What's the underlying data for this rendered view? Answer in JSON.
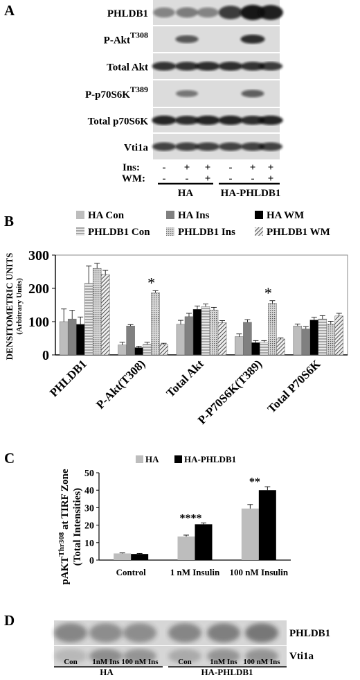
{
  "panels": {
    "a": "A",
    "b": "B",
    "c": "C",
    "d": "D"
  },
  "panelA": {
    "blots": [
      {
        "name": "PHLDB1"
      },
      {
        "name": "P-Akt",
        "sup": "T308"
      },
      {
        "name": "Total Akt"
      },
      {
        "name": "P-p70S6K",
        "sup": "T389"
      },
      {
        "name": "Total p70S6K"
      },
      {
        "name": "Vti1a"
      }
    ],
    "ins_label": "Ins:",
    "wm_label": "WM:",
    "ins_signs": [
      "-",
      "+",
      "+",
      "-",
      "+",
      "+"
    ],
    "wm_signs": [
      "-",
      "-",
      "+",
      "-",
      "-",
      "+"
    ],
    "group_ha": "HA",
    "group_phldb1": "HA-PHLDB1"
  },
  "panelB": {
    "legend": [
      "HA Con",
      "HA Ins",
      "HA WM",
      "PHLDB1 Con",
      "PHLDB1 Ins",
      "PHLDB1 WM"
    ],
    "ylabel": "DENSITOMETRIC UNITS",
    "ylabel2": "(Arbitrary Units)",
    "significance": [
      "*",
      "*"
    ]
  },
  "panelC": {
    "legend": [
      "HA",
      "HA-PHLDB1"
    ],
    "ylabel_pre": "pAKT",
    "ylabel_sub": "Thr308",
    "ylabel_post": " at TIRF Zone",
    "ylabel2": "(Total Intensities)",
    "annotations": [
      "****",
      "**"
    ]
  },
  "panelD": {
    "blots": [
      "PHLDB1",
      "Vti1a"
    ],
    "lanes": [
      "Con",
      "1nM Ins",
      "100 nM Ins",
      "Con",
      "1nM Ins",
      "100 nM Ins"
    ],
    "group_ha": "HA",
    "group_phldb1": "HA-PHLDB1"
  },
  "colors": {
    "ha_con": "#bdbdbd",
    "ha_ins": "#808080",
    "ha_wm": "#000000",
    "blot_bg": "#d6d6d6",
    "band": "#1a1a1a"
  },
  "chart_data": [
    {
      "type": "bar",
      "categories": [
        "PHLDB1",
        "P-Akt(T308)",
        "Total Akt",
        "P-P70S6K(T389)",
        "Total P70S6K"
      ],
      "series": [
        {
          "name": "HA Con",
          "values": [
            100,
            30,
            92,
            55,
            87
          ],
          "errors": [
            38,
            8,
            12,
            8,
            6
          ]
        },
        {
          "name": "HA Ins",
          "values": [
            108,
            87,
            115,
            98,
            78
          ],
          "errors": [
            26,
            4,
            10,
            8,
            7
          ]
        },
        {
          "name": "HA WM",
          "values": [
            92,
            22,
            137,
            37,
            105
          ],
          "errors": [
            22,
            4,
            10,
            6,
            8
          ]
        },
        {
          "name": "PHLDB1 Con",
          "values": [
            215,
            32,
            145,
            38,
            108
          ],
          "errors": [
            52,
            6,
            8,
            5,
            10
          ]
        },
        {
          "name": "PHLDB1 Ins",
          "values": [
            260,
            187,
            135,
            155,
            93
          ],
          "errors": [
            15,
            6,
            8,
            8,
            8
          ]
        },
        {
          "name": "PHLDB1 WM",
          "values": [
            242,
            32,
            97,
            48,
            117
          ],
          "errors": [
            12,
            3,
            6,
            3,
            8
          ]
        }
      ],
      "ylabel": "DENSITOMETRIC UNITS (Arbitrary Units)",
      "ylim": [
        0,
        300
      ],
      "yticks": [
        0,
        100,
        200,
        300
      ]
    },
    {
      "type": "bar",
      "categories": [
        "Control",
        "1 nM Insulin",
        "100 nM Insulin"
      ],
      "series": [
        {
          "name": "HA",
          "values": [
            3.8,
            13.5,
            29.5
          ],
          "errors": [
            0.3,
            0.8,
            2.3
          ]
        },
        {
          "name": "HA-PHLDB1",
          "values": [
            3.5,
            20.5,
            40
          ],
          "errors": [
            0.3,
            0.8,
            2.0
          ]
        }
      ],
      "ylabel": "pAKTThr308 at TIRF Zone (Total Intensities)",
      "ylim": [
        0,
        50
      ],
      "yticks": [
        0,
        10,
        20,
        30,
        40,
        50
      ]
    }
  ]
}
